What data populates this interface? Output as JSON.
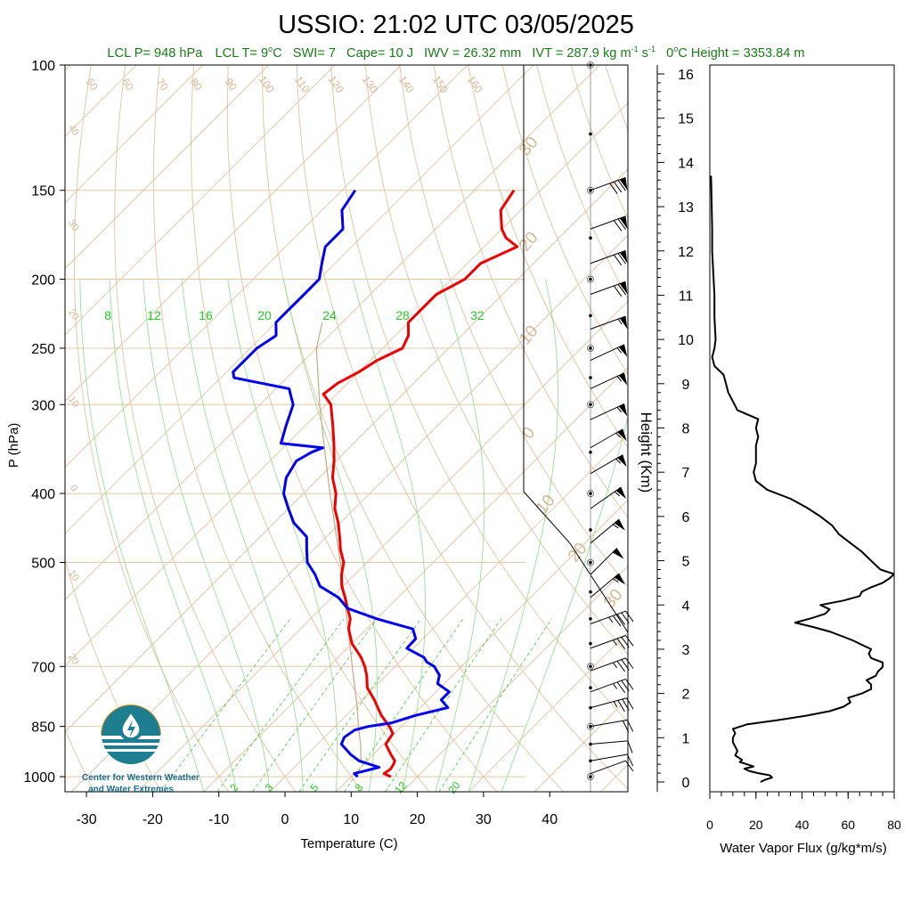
{
  "title": "USSIO: 21:02 UTC 03/05/2025",
  "stats_line": {
    "lcl_p": "LCL P= 948 hPa",
    "lcl_t_pre": "LCL T= 9",
    "lcl_t_sup": "o",
    "lcl_t_post": "C",
    "swi": "SWI= 7",
    "cape": "Cape= 10 J",
    "iwv": "IWV = 26.32 mm",
    "ivt_pre": "IVT = 287.9 kg m",
    "ivt_sup1": "-1",
    "ivt_mid": " s",
    "ivt_sup2": "-1",
    "zero_pre": "0",
    "zero_sup": "o",
    "zero_post": "C Height = 3353.84 m"
  },
  "colors": {
    "temperature": "#ee0000",
    "dewpoint": "#0000ee",
    "isotherm": "#e2c8a8",
    "dry_adiabat": "#e2c8a8",
    "moist_adiabat": "#88e088",
    "mixing_ratio": "#44cc44",
    "label_tan": "#d7b893",
    "label_green": "#22cc22",
    "stats_text": "#1a7a1a",
    "parcel": "#c8a882",
    "flux_line": "#000000"
  },
  "logo": {
    "line1": "Center for Western Weather",
    "line2": "and Water Extremes"
  },
  "chart_data": [
    {
      "type": "line",
      "name": "skew-T log-P sounding",
      "xlabel": "Temperature (C)",
      "ylabel": "P (hPa)",
      "x_ticks": [
        "-30",
        "-20",
        "-10",
        "0",
        "10",
        "20",
        "30",
        "40"
      ],
      "y_ticks": [
        "100",
        "150",
        "200",
        "250",
        "300",
        "400",
        "500",
        "700",
        "850",
        "1000"
      ],
      "ylim": [
        1000,
        100
      ],
      "y_scale": "log",
      "mixing_ratio_top_labels": [
        "8",
        "12",
        "16",
        "20",
        "24",
        "28",
        "32"
      ],
      "mixing_ratio_bottom_labels": [
        "2",
        "3",
        "5",
        "8",
        "12",
        "20"
      ],
      "dry_adiabat_labels": [
        "50",
        "60",
        "70",
        "80",
        "90",
        "100",
        "110",
        "120",
        "130",
        "140",
        "150",
        "160"
      ],
      "isotherm_left_labels": [
        "40",
        "30",
        "20",
        "10",
        "0",
        "10",
        "20"
      ],
      "isotherm_right_labels": [
        "30",
        "20",
        "10",
        "0",
        "10",
        "20",
        "30"
      ],
      "series": [
        {
          "id": "temperature",
          "p": [
            1000,
            990,
            975,
            960,
            950,
            930,
            900,
            870,
            850,
            820,
            800,
            780,
            750,
            720,
            700,
            680,
            650,
            620,
            600,
            580,
            560,
            540,
            520,
            500,
            480,
            460,
            440,
            420,
            400,
            380,
            360,
            340,
            320,
            300,
            290,
            280,
            270,
            260,
            250,
            240,
            230,
            220,
            210,
            200,
            190,
            180,
            175,
            170,
            160,
            150
          ],
          "t": [
            16,
            14.5,
            14.8,
            14.5,
            14.2,
            12.6,
            10.3,
            9.8,
            8.2,
            5.3,
            3.6,
            1.9,
            -1.0,
            -3.0,
            -4.6,
            -6.5,
            -10.0,
            -12.7,
            -14.0,
            -16.0,
            -18.0,
            -20.2,
            -22.0,
            -23.5,
            -25.9,
            -28.0,
            -30.3,
            -33.0,
            -35.1,
            -38.0,
            -40.3,
            -43.0,
            -46.0,
            -49.3,
            -52.0,
            -51.5,
            -50.0,
            -49.0,
            -47.0,
            -48.0,
            -50.0,
            -50.0,
            -50.0,
            -48.0,
            -48.0,
            -45.0,
            -48.0,
            -50.0,
            -53.0,
            -54.0
          ]
        },
        {
          "id": "dewpoint",
          "p": [
            1000,
            990,
            970,
            950,
            930,
            900,
            880,
            860,
            850,
            840,
            820,
            800,
            780,
            760,
            740,
            720,
            700,
            690,
            680,
            660,
            640,
            620,
            600,
            580,
            560,
            540,
            520,
            500,
            480,
            460,
            440,
            420,
            400,
            380,
            360,
            350,
            345,
            340,
            320,
            300,
            290,
            285,
            280,
            275,
            270,
            260,
            250,
            240,
            230,
            220,
            210,
            200,
            190,
            180,
            170,
            160,
            150
          ],
          "td": [
            11.0,
            10.0,
            12.8,
            8.8,
            6.5,
            3.6,
            3.0,
            3.5,
            5.0,
            8.0,
            10.5,
            14.2,
            12.0,
            12.0,
            9.0,
            8.0,
            5.9,
            4.1,
            3.0,
            -1.0,
            -1.1,
            -3.0,
            -10.0,
            -16.0,
            -19.0,
            -23.5,
            -26.0,
            -29.0,
            -31.0,
            -33.0,
            -37.0,
            -40.0,
            -43.0,
            -45.0,
            -46.0,
            -45.0,
            -44.0,
            -51.0,
            -53.0,
            -55.0,
            -57.0,
            -58.0,
            -63.0,
            -68.0,
            -69.0,
            -69.0,
            -69.0,
            -68.0,
            -70.0,
            -70.0,
            -70.0,
            -70.0,
            -72.0,
            -74.0,
            -74.0,
            -77.0,
            -78.0
          ]
        },
        {
          "id": "parcel",
          "p": [
            948,
            900,
            850,
            800,
            700,
            600,
            500,
            400,
            350,
            300,
            250,
            230
          ],
          "t": [
            9.0,
            6.5,
            3.5,
            0.5,
            -6.5,
            -14.5,
            -24.0,
            -36.0,
            -43.0,
            -51.0,
            -60.0,
            -63.0
          ]
        }
      ],
      "wind_barbs": [
        {
          "p": 150,
          "speed_kt": 80,
          "dir_deg": 250
        },
        {
          "p": 170,
          "speed_kt": 70,
          "dir_deg": 250
        },
        {
          "p": 190,
          "speed_kt": 70,
          "dir_deg": 250
        },
        {
          "p": 210,
          "speed_kt": 70,
          "dir_deg": 250
        },
        {
          "p": 235,
          "speed_kt": 55,
          "dir_deg": 250
        },
        {
          "p": 260,
          "speed_kt": 55,
          "dir_deg": 245
        },
        {
          "p": 285,
          "speed_kt": 55,
          "dir_deg": 245
        },
        {
          "p": 315,
          "speed_kt": 55,
          "dir_deg": 245
        },
        {
          "p": 345,
          "speed_kt": 55,
          "dir_deg": 240
        },
        {
          "p": 375,
          "speed_kt": 55,
          "dir_deg": 240
        },
        {
          "p": 420,
          "speed_kt": 55,
          "dir_deg": 235
        },
        {
          "p": 470,
          "speed_kt": 55,
          "dir_deg": 230
        },
        {
          "p": 520,
          "speed_kt": 50,
          "dir_deg": 225
        },
        {
          "p": 560,
          "speed_kt": 55,
          "dir_deg": 230
        },
        {
          "p": 610,
          "speed_kt": 45,
          "dir_deg": 250
        },
        {
          "p": 660,
          "speed_kt": 35,
          "dir_deg": 250
        },
        {
          "p": 710,
          "speed_kt": 35,
          "dir_deg": 250
        },
        {
          "p": 760,
          "speed_kt": 35,
          "dir_deg": 250
        },
        {
          "p": 800,
          "speed_kt": 35,
          "dir_deg": 255
        },
        {
          "p": 850,
          "speed_kt": 20,
          "dir_deg": 260
        },
        {
          "p": 900,
          "speed_kt": 10,
          "dir_deg": 265
        },
        {
          "p": 950,
          "speed_kt": 10,
          "dir_deg": 260
        },
        {
          "p": 990,
          "speed_kt": 10,
          "dir_deg": 250
        }
      ]
    },
    {
      "type": "line",
      "name": "water vapor flux profile",
      "xlabel": "Water Vapor Flux (g/kg*m/s)",
      "ylabel": "Height (Km)",
      "x_ticks": [
        "0",
        "20",
        "40",
        "60",
        "80"
      ],
      "xlim": [
        0,
        80
      ],
      "y_ticks": [
        "0",
        "1",
        "2",
        "3",
        "4",
        "5",
        "6",
        "7",
        "8",
        "9",
        "10",
        "11",
        "12",
        "13",
        "14",
        "15",
        "16"
      ],
      "ylim": [
        0,
        16
      ],
      "height_km": [
        0.0,
        0.05,
        0.1,
        0.15,
        0.2,
        0.25,
        0.3,
        0.35,
        0.4,
        0.45,
        0.5,
        0.6,
        0.7,
        0.8,
        0.9,
        1.0,
        1.1,
        1.2,
        1.3,
        1.4,
        1.5,
        1.6,
        1.7,
        1.8,
        1.9,
        2.0,
        2.1,
        2.2,
        2.3,
        2.4,
        2.5,
        2.6,
        2.7,
        2.8,
        2.9,
        3.0,
        3.1,
        3.2,
        3.3,
        3.4,
        3.5,
        3.6,
        3.7,
        3.8,
        3.9,
        4.0,
        4.1,
        4.2,
        4.3,
        4.4,
        4.5,
        4.6,
        4.7,
        4.8,
        4.9,
        5.0,
        5.2,
        5.4,
        5.6,
        5.8,
        6.0,
        6.2,
        6.4,
        6.6,
        6.8,
        7.0,
        7.2,
        7.4,
        7.6,
        7.8,
        8.0,
        8.2,
        8.4,
        8.6,
        8.8,
        9.0,
        9.2,
        9.4,
        9.6,
        9.8,
        10.0,
        10.5,
        11.0,
        11.5,
        12.0,
        12.5,
        13.0,
        13.5,
        13.7
      ],
      "flux": [
        22.0,
        24.0,
        27.0,
        26.0,
        21.0,
        17.0,
        15.0,
        19.0,
        16.0,
        13.0,
        14.0,
        11.0,
        12.0,
        11.0,
        10.0,
        10.0,
        11.0,
        10.0,
        16.0,
        30.0,
        42.0,
        52.0,
        58.0,
        61.0,
        60.0,
        66.0,
        70.0,
        70.0,
        68.0,
        72.0,
        73.0,
        75.0,
        75.0,
        70.0,
        69.0,
        70.0,
        66.0,
        62.0,
        57.0,
        52.0,
        45.0,
        37.0,
        44.0,
        50.0,
        52.0,
        48.0,
        58.0,
        65.0,
        66.0,
        70.0,
        75.0,
        78.0,
        80.0,
        74.0,
        72.0,
        70.0,
        66.0,
        61.0,
        56.0,
        53.0,
        48.0,
        42.0,
        35.0,
        25.0,
        20.0,
        19.0,
        20.0,
        20.0,
        20.0,
        21.0,
        20.0,
        21.0,
        12.0,
        10.0,
        8.0,
        7.0,
        6.0,
        2.0,
        1.0,
        2.0,
        2.5,
        2.0,
        2.0,
        1.5,
        1.0,
        1.0,
        0.8,
        0.6,
        0.5
      ]
    }
  ]
}
